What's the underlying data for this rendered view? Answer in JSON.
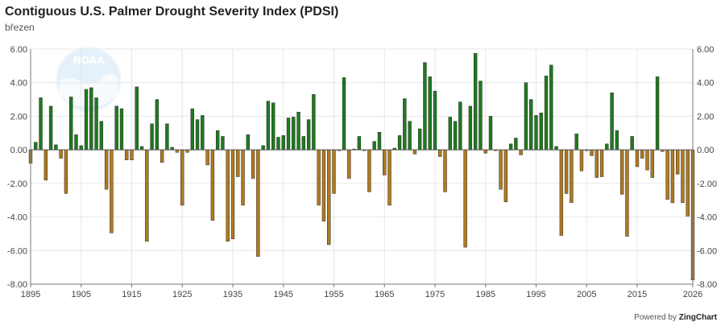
{
  "header": {
    "title": "Contiguous U.S. Palmer Drought Severity Index (PDSI)",
    "subtitle": "březen"
  },
  "logo": {
    "text": "NOAA",
    "icon": "noaa-logo"
  },
  "credit": {
    "prefix": "Powered by",
    "brand": "ZingChart"
  },
  "colors": {
    "positive": "#1f7a1f",
    "negative": "#b07a1e",
    "grid": "#e6e6e6",
    "axis": "#777777",
    "logo": "#cfe6f6"
  },
  "chart_data": {
    "type": "bar",
    "title": "Contiguous U.S. Palmer Drought Severity Index (PDSI)",
    "subtitle": "březen",
    "x_start": 1895,
    "x_end": 2026,
    "x_ticks": [
      "1895",
      "1905",
      "1915",
      "1925",
      "1935",
      "1945",
      "1955",
      "1965",
      "1975",
      "1985",
      "1995",
      "2005",
      "2015",
      "2026"
    ],
    "ylim": [
      -8,
      6
    ],
    "y_ticks": [
      "-8.00",
      "-6.00",
      "-4.00",
      "-2.00",
      "0.00",
      "2.00",
      "4.00",
      "6.00"
    ],
    "y_tick_values": [
      -8,
      -6,
      -4,
      -2,
      0,
      2,
      4,
      6
    ],
    "secondary_y_axis": true,
    "grid": true,
    "series": [
      {
        "x": [
          1895,
          1896,
          1897,
          1898,
          1899,
          1900,
          1901,
          1902,
          1903,
          1904,
          1905,
          1906,
          1907,
          1908,
          1909,
          1910,
          1911,
          1912,
          1913,
          1914,
          1915,
          1916,
          1917,
          1918,
          1919,
          1920,
          1921,
          1922,
          1923,
          1924,
          1925,
          1926,
          1927,
          1928,
          1929,
          1930,
          1931,
          1932,
          1933,
          1934,
          1935,
          1936,
          1937,
          1938,
          1939,
          1940,
          1941,
          1942,
          1943,
          1944,
          1945,
          1946,
          1947,
          1948,
          1949,
          1950,
          1951,
          1952,
          1953,
          1954,
          1955,
          1956,
          1957,
          1958,
          1959,
          1960,
          1961,
          1962,
          1963,
          1964,
          1965,
          1966,
          1967,
          1968,
          1969,
          1970,
          1971,
          1972,
          1973,
          1974,
          1975,
          1976,
          1977,
          1978,
          1979,
          1980,
          1981,
          1982,
          1983,
          1984,
          1985,
          1986,
          1987,
          1988,
          1989,
          1990,
          1991,
          1992,
          1993,
          1994,
          1995,
          1996,
          1997,
          1998,
          1999,
          2000,
          2001,
          2002,
          2003,
          2004,
          2005,
          2006,
          2007,
          2008,
          2009,
          2010,
          2011,
          2012,
          2013,
          2014,
          2015,
          2016,
          2017,
          2018,
          2019,
          2020,
          2021,
          2022,
          2023,
          2024,
          2025,
          2026
        ],
        "values": [
          -0.8,
          0.45,
          3.1,
          -1.8,
          2.6,
          0.3,
          -0.5,
          -2.6,
          3.15,
          0.9,
          0.25,
          3.6,
          3.7,
          3.1,
          1.7,
          -2.35,
          -4.95,
          2.6,
          2.45,
          -0.6,
          -0.6,
          3.75,
          0.2,
          -5.45,
          1.55,
          3.0,
          -0.75,
          1.55,
          0.15,
          -0.15,
          -3.3,
          -0.15,
          2.45,
          1.8,
          2.05,
          -0.9,
          -4.2,
          1.15,
          0.8,
          -5.45,
          -5.3,
          -1.6,
          -3.3,
          0.9,
          -1.7,
          -6.35,
          0.25,
          2.9,
          2.8,
          0.75,
          0.85,
          1.9,
          1.95,
          2.25,
          0.8,
          1.8,
          3.3,
          -3.3,
          -4.25,
          -5.65,
          -2.6,
          -0.05,
          4.3,
          -1.7,
          0.05,
          0.8,
          -0.05,
          -2.5,
          0.5,
          1.05,
          -1.5,
          -3.3,
          0.1,
          0.85,
          3.05,
          1.7,
          -0.25,
          1.25,
          5.2,
          4.35,
          3.5,
          -0.4,
          -2.5,
          1.95,
          1.7,
          2.85,
          -5.8,
          2.6,
          5.75,
          4.1,
          -0.2,
          2.0,
          -0.05,
          -2.35,
          -3.1,
          0.35,
          0.7,
          -0.3,
          4.0,
          3.0,
          2.05,
          2.2,
          4.4,
          5.05,
          0.2,
          -5.1,
          -2.6,
          -3.15,
          0.95,
          -1.25,
          -0.05,
          -0.35,
          -1.65,
          -1.6,
          0.35,
          3.4,
          1.15,
          -2.65,
          -5.15,
          0.8,
          -1.0,
          -0.5,
          -1.2,
          -1.65,
          4.35,
          -0.1,
          -2.95,
          -3.15,
          -1.45,
          -3.15,
          -3.95,
          -7.75
        ]
      }
    ]
  }
}
